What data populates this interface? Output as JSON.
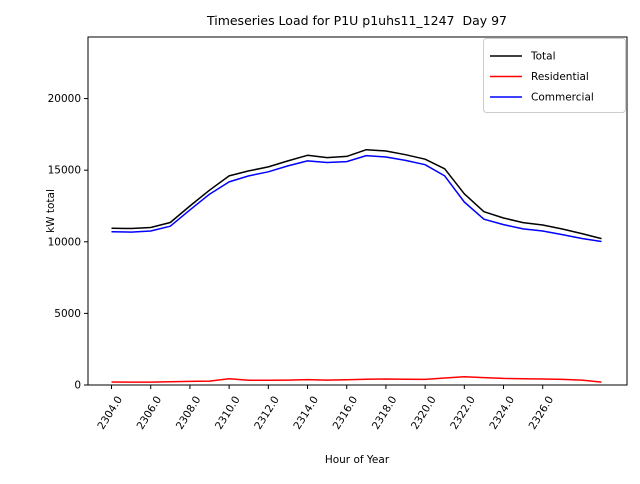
{
  "chart_data": {
    "type": "line",
    "title": "Timeseries Load for P1U p1uhs11_1247  Day 97",
    "xlabel": "Hour of Year",
    "ylabel": "kW total",
    "xlim": [
      2302.8,
      2330.3
    ],
    "ylim": [
      0,
      24300
    ],
    "grid": false,
    "legend_position": "upper right",
    "x": [
      2304,
      2305,
      2306,
      2307,
      2308,
      2309,
      2310,
      2311,
      2312,
      2313,
      2314,
      2315,
      2316,
      2317,
      2318,
      2319,
      2320,
      2321,
      2322,
      2323,
      2324,
      2325,
      2326,
      2327,
      2328,
      2329
    ],
    "series": [
      {
        "name": "Total",
        "color": "#000000",
        "values": [
          10950,
          10930,
          11000,
          11350,
          12500,
          13600,
          14600,
          14950,
          15230,
          15650,
          16040,
          15880,
          15960,
          16430,
          16340,
          16080,
          15770,
          15100,
          13350,
          12100,
          11660,
          11340,
          11170,
          10890,
          10570,
          10220
        ]
      },
      {
        "name": "Residential",
        "color": "#ff0000",
        "values": [
          210,
          200,
          200,
          220,
          250,
          270,
          430,
          330,
          330,
          340,
          380,
          340,
          360,
          400,
          420,
          400,
          390,
          490,
          580,
          520,
          460,
          440,
          420,
          390,
          340,
          200
        ]
      },
      {
        "name": "Commercial",
        "color": "#0000ff",
        "values": [
          10700,
          10680,
          10750,
          11090,
          12230,
          13320,
          14180,
          14600,
          14890,
          15300,
          15650,
          15540,
          15600,
          16020,
          15920,
          15680,
          15380,
          14600,
          12780,
          11580,
          11200,
          10900,
          10750,
          10500,
          10230,
          10020
        ]
      }
    ],
    "xticks": [
      2304,
      2306,
      2308,
      2310,
      2312,
      2314,
      2316,
      2318,
      2320,
      2322,
      2324,
      2326
    ],
    "xtick_labels": [
      "2304.0",
      "2306.0",
      "2308.0",
      "2310.0",
      "2312.0",
      "2314.0",
      "2316.0",
      "2318.0",
      "2320.0",
      "2322.0",
      "2324.0",
      "2326.0"
    ],
    "yticks": [
      0,
      5000,
      10000,
      15000,
      20000
    ],
    "ytick_labels": [
      "0",
      "5000",
      "10000",
      "15000",
      "20000"
    ]
  },
  "style": {
    "axis_color": "#000000",
    "legend_border_color": "#cccccc",
    "background_color": "#ffffff",
    "line_width": 1.5
  }
}
